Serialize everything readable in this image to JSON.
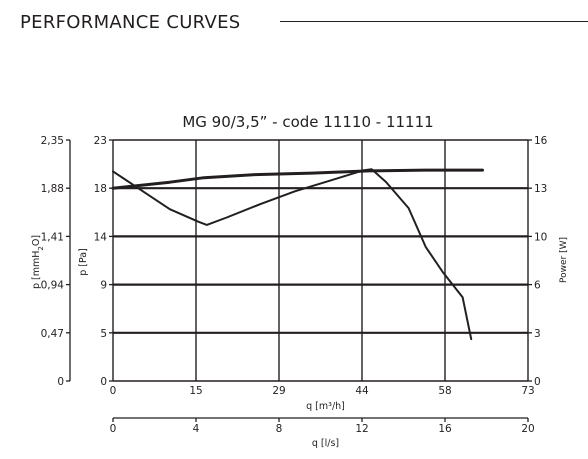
{
  "header": {
    "title": "PERFORMANCE CURVES"
  },
  "chart_data": {
    "type": "line",
    "title": "MG 90/3,5” - code 11110 - 11111",
    "grid": true,
    "x_axes": [
      {
        "label": "q [m³/h]",
        "range": [
          0,
          73
        ],
        "ticks": [
          "0",
          "15",
          "29",
          "44",
          "58",
          "73"
        ]
      },
      {
        "label": "q [l/s]",
        "range": [
          0,
          20
        ],
        "ticks": [
          "0",
          "4",
          "8",
          "12",
          "16",
          "20"
        ]
      }
    ],
    "y_axes": {
      "mmH2O": {
        "label_main": "p [mmH",
        "label_sub": "2",
        "label_end": "O]",
        "range": [
          0,
          2.35
        ],
        "ticks": [
          "0",
          "0,47",
          "0,94",
          "1,41",
          "1,88",
          "2,35"
        ]
      },
      "pa": {
        "label": "p [Pa]",
        "range": [
          0,
          23
        ],
        "ticks": [
          "0",
          "5",
          "9",
          "14",
          "18",
          "23"
        ]
      },
      "power": {
        "label": "Power [W]",
        "range": [
          0,
          16
        ],
        "ticks": [
          "0",
          "3",
          "6",
          "10",
          "13",
          "16"
        ]
      }
    },
    "series": [
      {
        "axis": "pa",
        "x": [
          0,
          5,
          10,
          15,
          16.5,
          20,
          26,
          32,
          38,
          44,
          45.5,
          48,
          52,
          55,
          58,
          61.5,
          63
        ],
        "y": [
          20,
          18.2,
          16.4,
          15.2,
          14.9,
          15.6,
          16.9,
          18.1,
          19.1,
          20.1,
          20.2,
          19,
          16.5,
          12.8,
          10.4,
          8,
          4
        ]
      },
      {
        "axis": "power",
        "x": [
          0,
          10,
          16,
          25,
          35,
          45,
          55,
          65
        ],
        "y": [
          12.8,
          13.2,
          13.5,
          13.7,
          13.8,
          13.95,
          14.0,
          14.0
        ]
      }
    ]
  }
}
